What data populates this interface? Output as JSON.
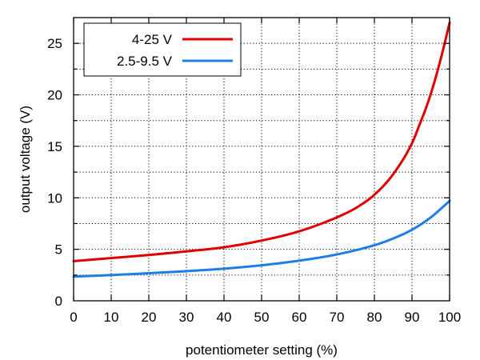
{
  "chart_data": {
    "type": "line",
    "xlabel": "potentiometer setting (%)",
    "ylabel": "output voltage (V)",
    "xlim": [
      0,
      100
    ],
    "ylim": [
      0,
      27.5
    ],
    "x_ticks": [
      0,
      10,
      20,
      30,
      40,
      50,
      60,
      70,
      80,
      90,
      100
    ],
    "y_ticks": [
      0,
      5,
      10,
      15,
      20,
      25
    ],
    "grid": true,
    "legend_position": "top-left",
    "series": [
      {
        "name": "4-25 V",
        "color": "#e00000",
        "x": [
          0,
          10,
          20,
          30,
          40,
          50,
          60,
          70,
          75,
          80,
          85,
          90,
          92,
          94,
          96,
          98,
          100
        ],
        "values": [
          3.85,
          4.15,
          4.45,
          4.8,
          5.2,
          5.85,
          6.75,
          8.1,
          9.0,
          10.3,
          12.3,
          15.3,
          17.1,
          19.0,
          21.3,
          24.0,
          27.0
        ]
      },
      {
        "name": "2.5-9.5 V",
        "color": "#1e7ee6",
        "x": [
          0,
          10,
          20,
          30,
          40,
          50,
          60,
          70,
          80,
          85,
          90,
          95,
          100
        ],
        "values": [
          2.35,
          2.5,
          2.68,
          2.88,
          3.12,
          3.45,
          3.9,
          4.5,
          5.4,
          6.05,
          6.9,
          8.1,
          9.7
        ]
      }
    ]
  }
}
